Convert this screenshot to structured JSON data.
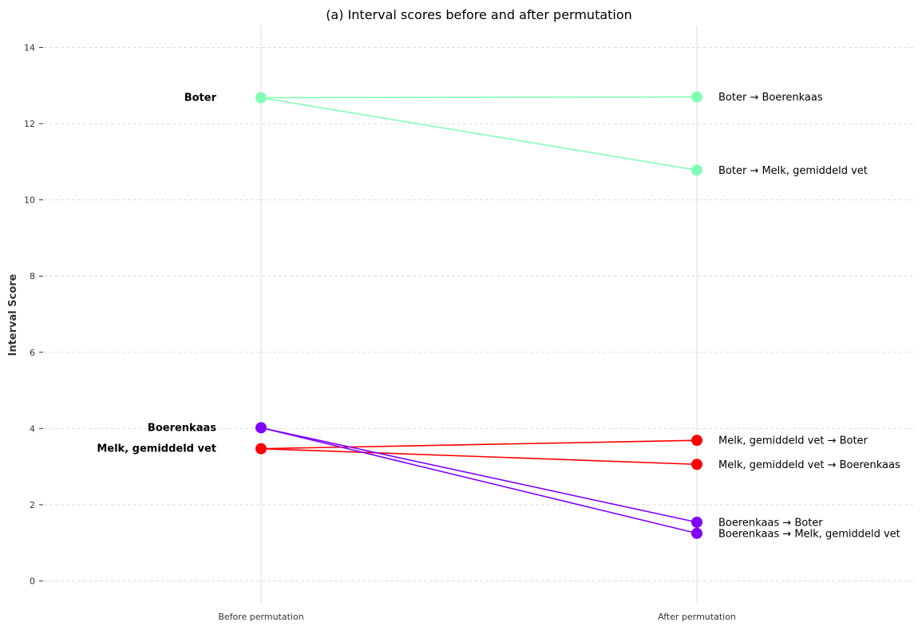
{
  "chart_data": {
    "type": "line",
    "title": "(a) Interval scores before and after permutation",
    "xlabel": "",
    "ylabel": "Interval Score",
    "categories": [
      "Before permutation",
      "After permutation"
    ],
    "ylim": [
      -0.6,
      14.55
    ],
    "yticks": [
      0,
      2,
      4,
      6,
      8,
      10,
      12,
      14
    ],
    "grid": true,
    "groups": [
      {
        "label": "Boter",
        "value": 12.68,
        "color": "#80ffb4"
      },
      {
        "label": "Boerenkaas",
        "value": 4.02,
        "color": "#8000ff"
      },
      {
        "label": "Melk, gemiddeld vet",
        "value": 3.47,
        "color": "#ff0000"
      }
    ],
    "series": [
      {
        "name": "Boter → Boerenkaas",
        "from": "Boter",
        "values": [
          12.68,
          12.7
        ],
        "color": "#80ffb4"
      },
      {
        "name": "Boter → Melk, gemiddeld vet",
        "from": "Boter",
        "values": [
          12.68,
          10.78
        ],
        "color": "#80ffb4"
      },
      {
        "name": "Melk, gemiddeld vet → Boter",
        "from": "Melk, gemiddeld vet",
        "values": [
          3.47,
          3.69
        ],
        "color": "#ff0000"
      },
      {
        "name": "Melk, gemiddeld vet → Boerenkaas",
        "from": "Melk, gemiddeld vet",
        "values": [
          3.47,
          3.06
        ],
        "color": "#ff0000"
      },
      {
        "name": "Boerenkaas → Boter",
        "from": "Boerenkaas",
        "values": [
          4.02,
          1.54
        ],
        "color": "#8000ff"
      },
      {
        "name": "Boerenkaas → Melk, gemiddeld vet",
        "from": "Boerenkaas",
        "values": [
          4.02,
          1.25
        ],
        "color": "#8000ff"
      }
    ]
  }
}
